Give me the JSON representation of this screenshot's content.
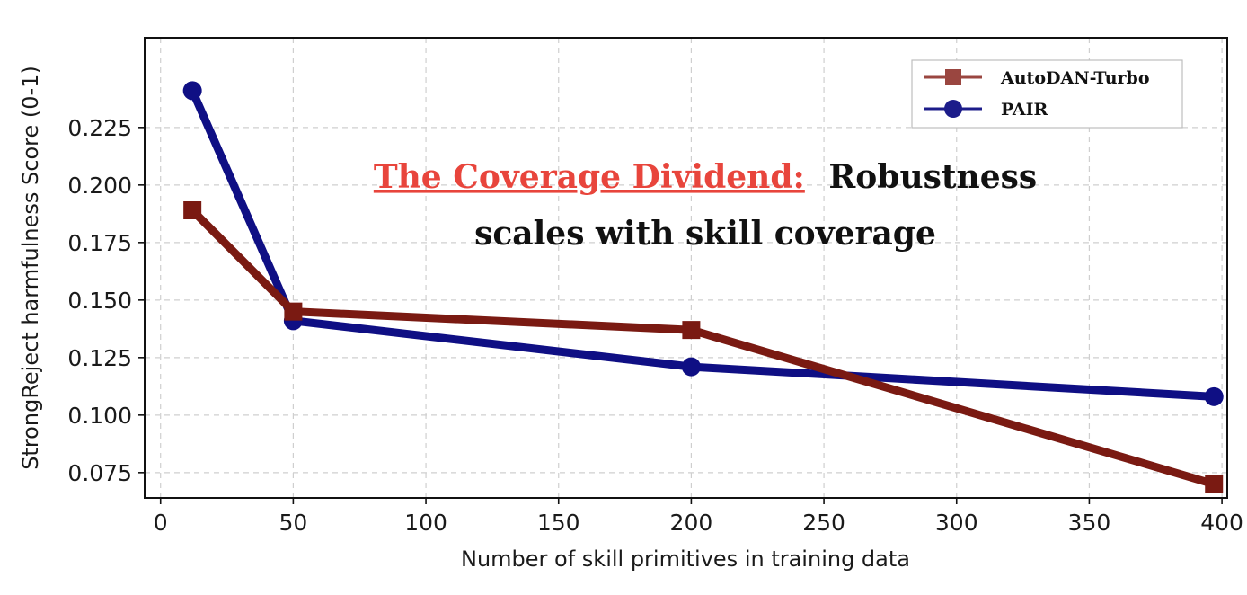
{
  "chart_data": {
    "type": "line",
    "title": "",
    "xlabel": "Number of skill primitives in training data",
    "ylabel": "StrongReject harmfulness Score (0-1)",
    "xlim": [
      -6,
      402
    ],
    "ylim": [
      0.064,
      0.264
    ],
    "xticks": [
      0,
      50,
      100,
      150,
      200,
      250,
      300,
      350,
      400
    ],
    "xtick_labels": [
      "0",
      "50",
      "100",
      "150",
      "200",
      "250",
      "300",
      "350",
      "400"
    ],
    "yticks": [
      0.075,
      0.1,
      0.125,
      0.15,
      0.175,
      0.2,
      0.225
    ],
    "ytick_labels": [
      "0.075",
      "0.100",
      "0.125",
      "0.150",
      "0.175",
      "0.200",
      "0.225"
    ],
    "grid": true,
    "legend_position": "top-right",
    "series": [
      {
        "name": "AutoDAN-Turbo",
        "marker": "square",
        "line_color": "#7a1a12",
        "marker_color": "#7a1a12",
        "legend_color": "#9a4640",
        "points": [
          {
            "x": 12,
            "y": 0.189
          },
          {
            "x": 50,
            "y": 0.145
          },
          {
            "x": 200,
            "y": 0.137
          },
          {
            "x": 397,
            "y": 0.07
          }
        ]
      },
      {
        "name": "PAIR",
        "marker": "circle",
        "line_color": "#0f0f84",
        "marker_color": "#0f0f84",
        "legend_color": "#1c1c8a",
        "points": [
          {
            "x": 12,
            "y": 0.241
          },
          {
            "x": 50,
            "y": 0.141
          },
          {
            "x": 200,
            "y": 0.121
          },
          {
            "x": 397,
            "y": 0.108
          }
        ]
      }
    ],
    "annotation": {
      "highlight": "The Coverage Dividend:",
      "highlight_color": "#e8453c",
      "line1_rest": "Robustness",
      "line2": "scales with skill coverage",
      "text_color": "#111111"
    }
  }
}
